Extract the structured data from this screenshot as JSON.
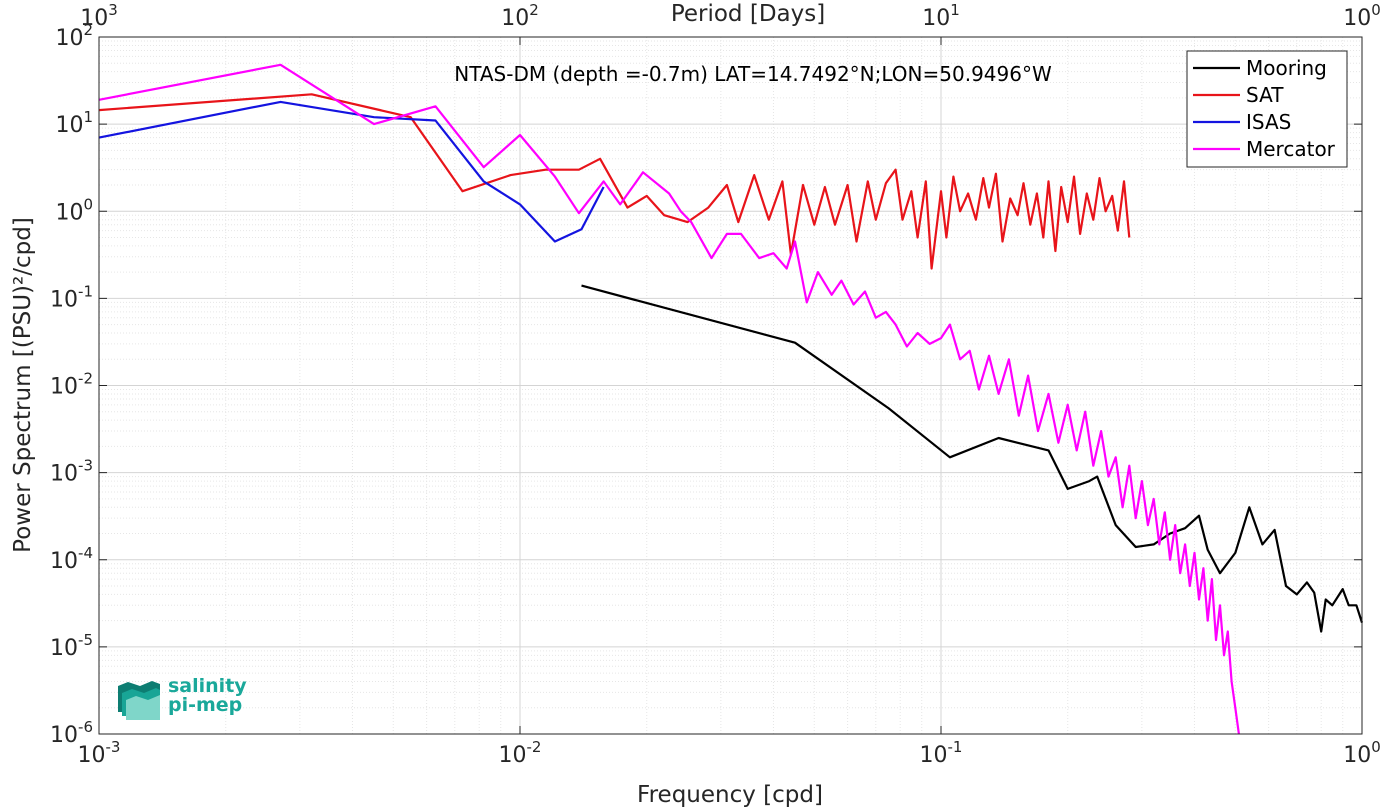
{
  "chart_data": {
    "type": "line",
    "title": "NTAS-DM (depth =-0.7m) LAT=14.7492°N;LON=50.9496°W",
    "xlabel": "Frequency [cpd]",
    "ylabel": "Power Spectrum [(PSU)²/cpd]",
    "top_xlabel": "Period [Days]",
    "x_scale": "log",
    "y_scale": "log",
    "xlim": [
      0.001,
      1
    ],
    "ylim": [
      1e-06,
      100
    ],
    "x_ticks": [
      {
        "value": 0.001,
        "base": "10",
        "exp": "-3"
      },
      {
        "value": 0.01,
        "base": "10",
        "exp": "-2"
      },
      {
        "value": 0.1,
        "base": "10",
        "exp": "-1"
      },
      {
        "value": 1,
        "base": "10",
        "exp": "0"
      }
    ],
    "top_ticks": [
      {
        "value": 0.001,
        "base": "10",
        "exp": "3"
      },
      {
        "value": 0.01,
        "base": "10",
        "exp": "2"
      },
      {
        "value": 0.1,
        "base": "10",
        "exp": "1"
      },
      {
        "value": 1,
        "base": "10",
        "exp": "0"
      }
    ],
    "y_ticks": [
      {
        "value": 100,
        "base": "10",
        "exp": "2"
      },
      {
        "value": 10,
        "base": "10",
        "exp": "1"
      },
      {
        "value": 1,
        "base": "10",
        "exp": "0"
      },
      {
        "value": 0.1,
        "base": "10",
        "exp": "-1"
      },
      {
        "value": 0.01,
        "base": "10",
        "exp": "-2"
      },
      {
        "value": 0.001,
        "base": "10",
        "exp": "-3"
      },
      {
        "value": 0.0001,
        "base": "10",
        "exp": "-4"
      },
      {
        "value": 1e-05,
        "base": "10",
        "exp": "-5"
      },
      {
        "value": 1e-06,
        "base": "10",
        "exp": "-6"
      }
    ],
    "grid": true,
    "legend_position": "top-right",
    "series": [
      {
        "name": "Mooring",
        "color": "#000000",
        "points": [
          [
            0.014,
            0.14
          ],
          [
            0.045,
            0.031
          ],
          [
            0.075,
            0.0055
          ],
          [
            0.105,
            0.0015
          ],
          [
            0.137,
            0.0025
          ],
          [
            0.18,
            0.0018
          ],
          [
            0.2,
            0.00065
          ],
          [
            0.225,
            0.0008
          ],
          [
            0.235,
            0.0009
          ],
          [
            0.26,
            0.00025
          ],
          [
            0.29,
            0.00014
          ],
          [
            0.32,
            0.00015
          ],
          [
            0.35,
            0.0002
          ],
          [
            0.38,
            0.00023
          ],
          [
            0.41,
            0.00032
          ],
          [
            0.43,
            0.00013
          ],
          [
            0.46,
            7e-05
          ],
          [
            0.5,
            0.00012
          ],
          [
            0.54,
            0.0004
          ],
          [
            0.58,
            0.00015
          ],
          [
            0.62,
            0.00022
          ],
          [
            0.66,
            5e-05
          ],
          [
            0.7,
            4e-05
          ],
          [
            0.74,
            5.5e-05
          ],
          [
            0.77,
            4.2e-05
          ],
          [
            0.8,
            1.5e-05
          ],
          [
            0.82,
            3.5e-05
          ],
          [
            0.85,
            3e-05
          ],
          [
            0.9,
            4.6e-05
          ],
          [
            0.93,
            3e-05
          ],
          [
            0.97,
            3e-05
          ],
          [
            1.0,
            1.9e-05
          ]
        ]
      },
      {
        "name": "SAT",
        "color": "#e8141a",
        "points": [
          [
            0.001,
            14.5
          ],
          [
            0.0032,
            22
          ],
          [
            0.0055,
            12
          ],
          [
            0.0073,
            1.7
          ],
          [
            0.0095,
            2.6
          ],
          [
            0.0115,
            3.0
          ],
          [
            0.0138,
            3.0
          ],
          [
            0.0155,
            4.0
          ],
          [
            0.018,
            1.1
          ],
          [
            0.02,
            1.5
          ],
          [
            0.022,
            0.9
          ],
          [
            0.025,
            0.75
          ],
          [
            0.028,
            1.1
          ],
          [
            0.031,
            2.0
          ],
          [
            0.033,
            0.75
          ],
          [
            0.036,
            2.6
          ],
          [
            0.039,
            0.8
          ],
          [
            0.042,
            2.2
          ],
          [
            0.044,
            0.32
          ],
          [
            0.047,
            2.0
          ],
          [
            0.05,
            0.7
          ],
          [
            0.053,
            1.9
          ],
          [
            0.056,
            0.7
          ],
          [
            0.06,
            2.0
          ],
          [
            0.063,
            0.45
          ],
          [
            0.067,
            2.2
          ],
          [
            0.07,
            0.8
          ],
          [
            0.074,
            2.1
          ],
          [
            0.078,
            3.0
          ],
          [
            0.081,
            0.8
          ],
          [
            0.085,
            1.7
          ],
          [
            0.088,
            0.5
          ],
          [
            0.092,
            2.2
          ],
          [
            0.095,
            0.22
          ],
          [
            0.1,
            1.7
          ],
          [
            0.103,
            0.5
          ],
          [
            0.107,
            2.5
          ],
          [
            0.111,
            1.0
          ],
          [
            0.116,
            1.6
          ],
          [
            0.121,
            0.8
          ],
          [
            0.126,
            2.4
          ],
          [
            0.13,
            1.1
          ],
          [
            0.135,
            2.7
          ],
          [
            0.14,
            0.45
          ],
          [
            0.146,
            1.4
          ],
          [
            0.152,
            0.9
          ],
          [
            0.157,
            2.1
          ],
          [
            0.163,
            0.7
          ],
          [
            0.169,
            1.6
          ],
          [
            0.175,
            0.5
          ],
          [
            0.18,
            2.2
          ],
          [
            0.187,
            0.35
          ],
          [
            0.193,
            1.9
          ],
          [
            0.2,
            0.75
          ],
          [
            0.207,
            2.5
          ],
          [
            0.214,
            0.55
          ],
          [
            0.222,
            1.6
          ],
          [
            0.23,
            0.8
          ],
          [
            0.238,
            2.4
          ],
          [
            0.246,
            1.0
          ],
          [
            0.255,
            1.5
          ],
          [
            0.263,
            0.6
          ],
          [
            0.272,
            2.2
          ],
          [
            0.28,
            0.5
          ]
        ]
      },
      {
        "name": "ISAS",
        "color": "#1414e0",
        "points": [
          [
            0.001,
            7.0
          ],
          [
            0.0027,
            18
          ],
          [
            0.0045,
            12
          ],
          [
            0.0063,
            11
          ],
          [
            0.0082,
            2.2
          ],
          [
            0.01,
            1.2
          ],
          [
            0.0121,
            0.45
          ],
          [
            0.014,
            0.62
          ],
          [
            0.0158,
            1.9
          ]
        ]
      },
      {
        "name": "Mercator",
        "color": "#ff00ff",
        "points": [
          [
            0.001,
            19
          ],
          [
            0.0027,
            48
          ],
          [
            0.0045,
            10
          ],
          [
            0.0063,
            16
          ],
          [
            0.0082,
            3.2
          ],
          [
            0.01,
            7.5
          ],
          [
            0.0121,
            2.5
          ],
          [
            0.0138,
            0.95
          ],
          [
            0.0158,
            2.2
          ],
          [
            0.0173,
            1.2
          ],
          [
            0.0196,
            2.8
          ],
          [
            0.0226,
            1.6
          ],
          [
            0.0241,
            1.0
          ],
          [
            0.0255,
            0.75
          ],
          [
            0.0285,
            0.29
          ],
          [
            0.031,
            0.55
          ],
          [
            0.0335,
            0.55
          ],
          [
            0.037,
            0.29
          ],
          [
            0.04,
            0.33
          ],
          [
            0.043,
            0.22
          ],
          [
            0.045,
            0.45
          ],
          [
            0.048,
            0.09
          ],
          [
            0.051,
            0.2
          ],
          [
            0.055,
            0.11
          ],
          [
            0.058,
            0.16
          ],
          [
            0.062,
            0.085
          ],
          [
            0.066,
            0.12
          ],
          [
            0.07,
            0.06
          ],
          [
            0.074,
            0.07
          ],
          [
            0.078,
            0.05
          ],
          [
            0.083,
            0.028
          ],
          [
            0.088,
            0.04
          ],
          [
            0.094,
            0.03
          ],
          [
            0.1,
            0.035
          ],
          [
            0.105,
            0.05
          ],
          [
            0.111,
            0.02
          ],
          [
            0.117,
            0.025
          ],
          [
            0.123,
            0.009
          ],
          [
            0.13,
            0.022
          ],
          [
            0.137,
            0.008
          ],
          [
            0.145,
            0.02
          ],
          [
            0.153,
            0.0045
          ],
          [
            0.161,
            0.013
          ],
          [
            0.17,
            0.003
          ],
          [
            0.18,
            0.008
          ],
          [
            0.19,
            0.0022
          ],
          [
            0.2,
            0.006
          ],
          [
            0.21,
            0.0018
          ],
          [
            0.22,
            0.005
          ],
          [
            0.23,
            0.0012
          ],
          [
            0.24,
            0.003
          ],
          [
            0.25,
            0.0009
          ],
          [
            0.26,
            0.0015
          ],
          [
            0.27,
            0.0004
          ],
          [
            0.28,
            0.0012
          ],
          [
            0.29,
            0.0003
          ],
          [
            0.3,
            0.0008
          ],
          [
            0.31,
            0.00025
          ],
          [
            0.32,
            0.0005
          ],
          [
            0.33,
            0.00015
          ],
          [
            0.34,
            0.00035
          ],
          [
            0.35,
            0.0001
          ],
          [
            0.36,
            0.00025
          ],
          [
            0.37,
            7e-05
          ],
          [
            0.38,
            0.00015
          ],
          [
            0.39,
            5e-05
          ],
          [
            0.4,
            0.00012
          ],
          [
            0.41,
            3.5e-05
          ],
          [
            0.42,
            8e-05
          ],
          [
            0.43,
            2e-05
          ],
          [
            0.44,
            6e-05
          ],
          [
            0.45,
            1.2e-05
          ],
          [
            0.46,
            3e-05
          ],
          [
            0.47,
            8e-06
          ],
          [
            0.48,
            1.5e-05
          ],
          [
            0.49,
            4e-06
          ],
          [
            0.5,
            2e-06
          ],
          [
            0.51,
            1e-06
          ]
        ]
      }
    ]
  },
  "logo": {
    "line1": "salinity",
    "line2": "pi-mep",
    "color": "#1aa89a"
  }
}
